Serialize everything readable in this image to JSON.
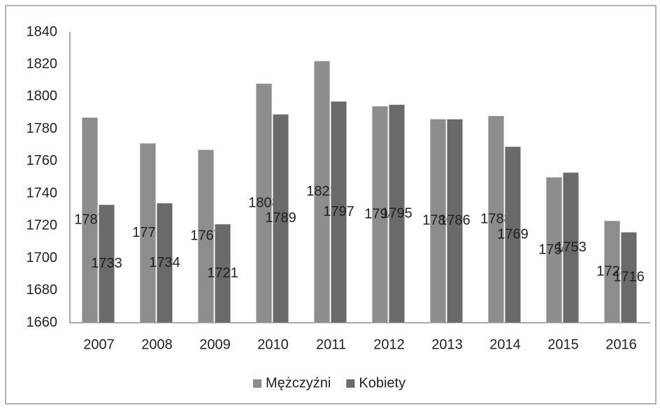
{
  "chart_data": {
    "type": "bar",
    "categories": [
      "2007",
      "2008",
      "2009",
      "2010",
      "2011",
      "2012",
      "2013",
      "2014",
      "2015",
      "2016"
    ],
    "series": [
      {
        "name": "Mężczyźni",
        "color": "#8d8d8d",
        "values": [
          1787,
          1771,
          1767,
          1808,
          1822,
          1794,
          1786,
          1788,
          1750,
          1723
        ]
      },
      {
        "name": "Kobiety",
        "color": "#6a6a6a",
        "values": [
          1733,
          1734,
          1721,
          1789,
          1797,
          1795,
          1786,
          1769,
          1753,
          1716
        ]
      }
    ],
    "ylim": [
      1660,
      1840
    ],
    "yticks": [
      1660,
      1680,
      1700,
      1720,
      1740,
      1760,
      1780,
      1800,
      1820,
      1840
    ],
    "grid": false,
    "legend": "bottom"
  }
}
